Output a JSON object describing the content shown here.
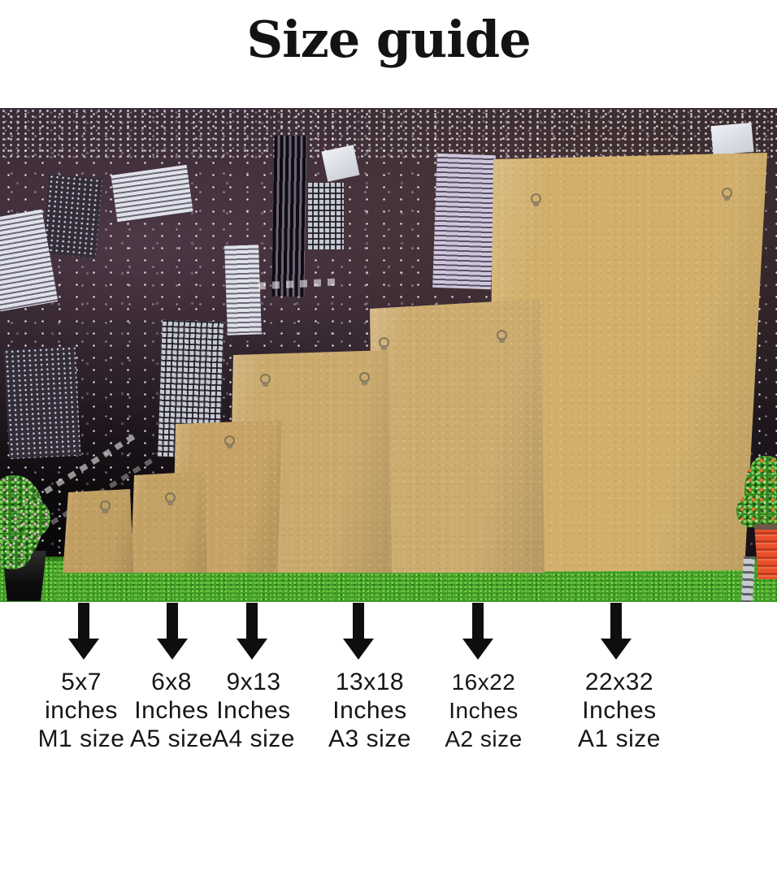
{
  "title": "Size guide",
  "sizes": [
    {
      "dimensions": "5x7",
      "unit": "inches",
      "standard": "M1 size"
    },
    {
      "dimensions": "6x8",
      "unit": "Inches",
      "standard": "A5 size"
    },
    {
      "dimensions": "9x13",
      "unit": "Inches",
      "standard": "A4 size"
    },
    {
      "dimensions": "13x18",
      "unit": "Inches",
      "standard": "A3 size"
    },
    {
      "dimensions": "16x22",
      "unit": "Inches",
      "standard": "A2 size"
    },
    {
      "dimensions": "22x32",
      "unit": "Inches",
      "standard": "A1 size"
    }
  ],
  "scene": {
    "board_color": "#c9a76a",
    "grass_color": "#3f9e27",
    "sky_color": "#1d151c",
    "arrow_color": "#0e0e0e",
    "left_pot_color": "#161616",
    "right_pot_color": "#e8512b",
    "left_plant_flower_color": "#e9a8cc",
    "right_plant_flower_color": "#e8742c",
    "hook_type": "d-ring"
  }
}
